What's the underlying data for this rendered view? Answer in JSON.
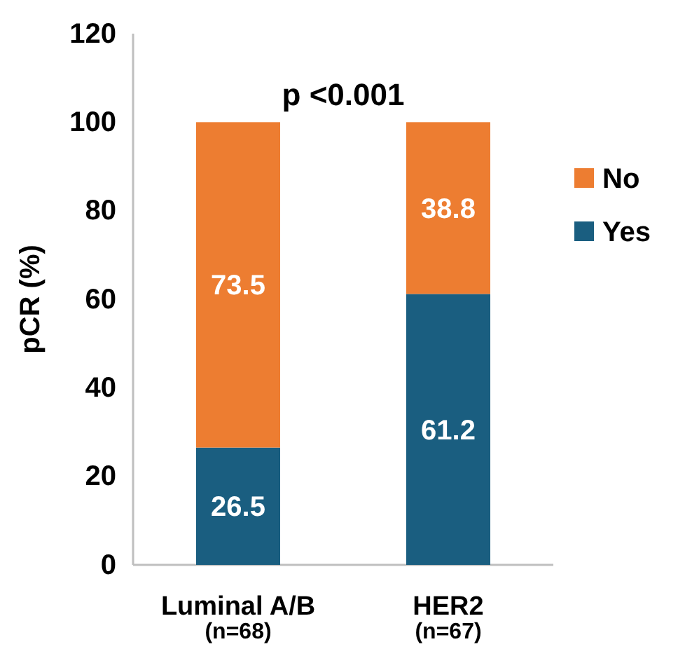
{
  "chart_data": {
    "type": "bar",
    "stacked": true,
    "ylabel": "pCR (%)",
    "categories": [
      "Luminal A/B\n(n=68)",
      "HER2\n(n=67)"
    ],
    "series": [
      {
        "name": "Yes",
        "color": "#1a5e80",
        "values": [
          26.5,
          61.2
        ]
      },
      {
        "name": "No",
        "color": "#ed7d31",
        "values": [
          73.5,
          38.8
        ]
      }
    ],
    "ylim": [
      0,
      120
    ],
    "yticks": [
      0,
      20,
      40,
      60,
      80,
      100,
      120
    ],
    "data_labels": true,
    "legend": "right",
    "grid": false,
    "annotations": [
      "p <0.001"
    ]
  }
}
